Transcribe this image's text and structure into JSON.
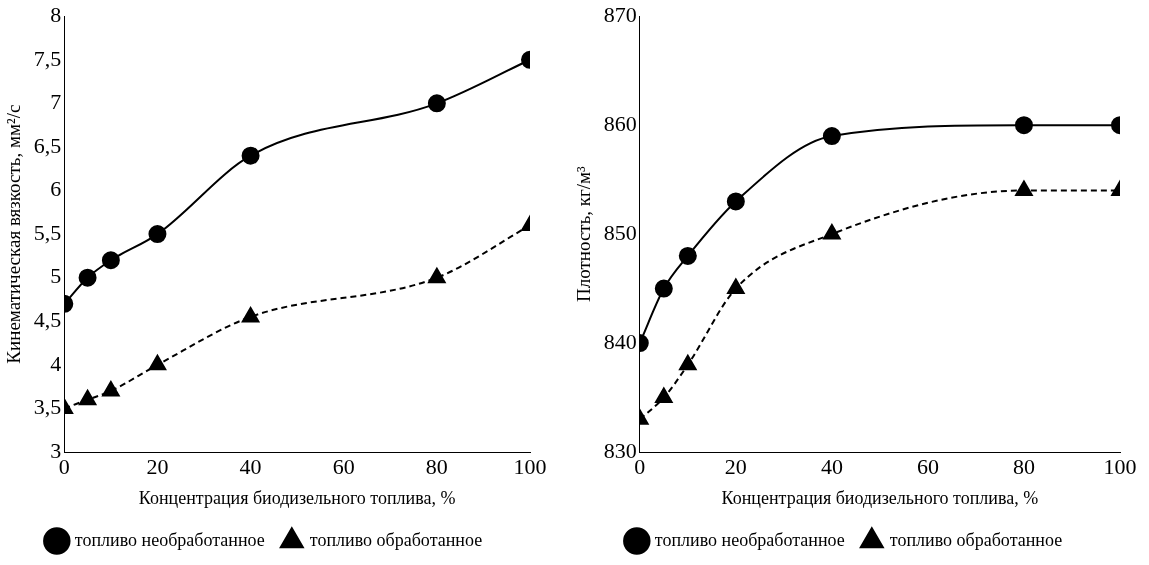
{
  "chart_data": [
    {
      "type": "line",
      "xlabel": "Концентрация биодизельного топлива, %",
      "ylabel": "Кинематическая вязкость, мм²/с",
      "x": [
        0,
        5,
        10,
        20,
        40,
        80,
        100
      ],
      "series": [
        {
          "name": "топливо необработанное",
          "color": "#000000",
          "marker": "circle",
          "line_style": "solid",
          "values": [
            4.7,
            5.0,
            5.2,
            5.5,
            6.4,
            7.0,
            7.5
          ]
        },
        {
          "name": "топливо обработанное",
          "color": "#000000",
          "marker": "triangle",
          "line_style": "dashed",
          "values": [
            3.5,
            3.6,
            3.7,
            4.0,
            4.55,
            5.0,
            5.6
          ]
        }
      ],
      "xlim": [
        0,
        100
      ],
      "xticks": [
        0,
        20,
        40,
        60,
        80,
        100
      ],
      "ylim": [
        3,
        8
      ],
      "yticks": [
        3,
        {
          "value": 3.5,
          "label": "3,5"
        },
        4,
        {
          "value": 4.5,
          "label": "4,5"
        },
        5,
        {
          "value": 5.5,
          "label": "5,5"
        },
        6,
        {
          "value": 6.5,
          "label": "6,5"
        },
        7,
        {
          "value": 7.5,
          "label": "7,5"
        },
        8
      ],
      "grid": false,
      "legend": "bottom"
    },
    {
      "type": "line",
      "xlabel": "Концентрация биодизельного топлива, %",
      "ylabel": "Плотность, кг/м³",
      "x": [
        0,
        5,
        10,
        20,
        40,
        80,
        100
      ],
      "series": [
        {
          "name": "топливо необработанное",
          "color": "#000000",
          "marker": "circle",
          "line_style": "solid",
          "values": [
            840,
            845,
            848,
            853,
            859,
            860,
            860
          ]
        },
        {
          "name": "топливо обработанное",
          "color": "#000000",
          "marker": "triangle",
          "line_style": "dashed",
          "values": [
            833,
            835,
            838,
            845,
            850,
            854,
            854
          ]
        }
      ],
      "xlim": [
        0,
        100
      ],
      "xticks": [
        0,
        20,
        40,
        60,
        80,
        100
      ],
      "ylim": [
        830,
        870
      ],
      "yticks": [
        830,
        840,
        850,
        860,
        870
      ],
      "grid": false,
      "legend": "bottom"
    }
  ]
}
